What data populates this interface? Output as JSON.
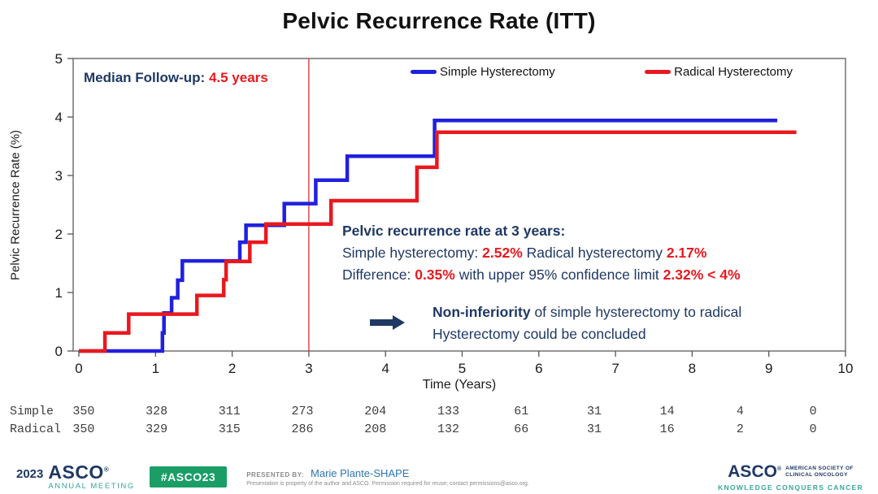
{
  "title": "Pelvic Recurrence Rate (ITT)",
  "chart_data": {
    "type": "line",
    "subtype": "kaplan-meier-step",
    "title": "Pelvic Recurrence Rate (ITT)",
    "xlabel": "Time (Years)",
    "ylabel": "Pelvic Recurrence Rate (%)",
    "xlim": [
      0,
      10
    ],
    "ylim": [
      0,
      5
    ],
    "x_ticks": [
      0,
      1,
      2,
      3,
      4,
      5,
      6,
      7,
      8,
      9,
      10
    ],
    "y_ticks": [
      0,
      1,
      2,
      3,
      4,
      5
    ],
    "grid": false,
    "legend_position": "top-center-inside",
    "marker_line_x": 3,
    "marker_line_color": "#E8191F",
    "series": [
      {
        "name": "Simple Hysterectomy",
        "color": "#2020DF",
        "end_x": 9.11,
        "steps": [
          [
            1.09,
            0.31
          ],
          [
            1.11,
            0.65
          ],
          [
            1.21,
            0.91
          ],
          [
            1.29,
            1.21
          ],
          [
            1.35,
            1.54
          ],
          [
            2.1,
            1.86
          ],
          [
            2.18,
            2.15
          ],
          [
            2.68,
            2.52
          ],
          [
            3.09,
            2.92
          ],
          [
            3.5,
            3.33
          ],
          [
            4.64,
            3.94
          ]
        ]
      },
      {
        "name": "Radical Hysterectomy",
        "color": "#E8191F",
        "end_x": 9.36,
        "steps": [
          [
            0.34,
            0.31
          ],
          [
            0.65,
            0.63
          ],
          [
            1.54,
            0.95
          ],
          [
            1.89,
            1.22
          ],
          [
            1.92,
            1.53
          ],
          [
            2.23,
            1.86
          ],
          [
            2.44,
            2.17
          ],
          [
            3.29,
            2.57
          ],
          [
            4.41,
            3.14
          ],
          [
            4.67,
            3.74
          ]
        ]
      }
    ],
    "risk_table": {
      "rows": [
        {
          "label": "Simple",
          "values": [
            350,
            328,
            311,
            273,
            204,
            133,
            61,
            31,
            14,
            4,
            0
          ]
        },
        {
          "label": "Radical",
          "values": [
            350,
            329,
            315,
            286,
            208,
            132,
            66,
            31,
            16,
            2,
            0
          ]
        }
      ]
    }
  },
  "annotations": {
    "median_label": "Median Follow-up:",
    "median_value": "4.5 years",
    "box_title": "Pelvic recurrence rate at 3 years:",
    "simple_label": "Simple hysterectomy:",
    "simple_value": "2.52%",
    "radical_label": "Radical hysterectomy",
    "radical_value": "2.17%",
    "diff_label": "Difference:",
    "diff_value": "0.35%",
    "diff_mid": "with upper 95% confidence limit",
    "diff_limit": "2.32% < 4%",
    "conclusion_bold": "Non-inferiority",
    "conclusion_rest": "of simple hysterectomy to radical",
    "conclusion_line2": "Hysterectomy could be concluded"
  },
  "footer": {
    "year": "2023",
    "asco": "ASCO",
    "annual_meeting": "ANNUAL MEETING",
    "hashtag": "#ASCO23",
    "presented_by": "PRESENTED BY:",
    "presenter": "Marie Plante-SHAPE",
    "permission": "Presentation is property of the author and ASCO. Permission required for reuse; contact permissions@asco.org.",
    "asco_right": "ASCO",
    "society_line1": "AMERICAN SOCIETY OF",
    "society_line2": "CLINICAL ONCOLOGY",
    "tagline": "KNOWLEDGE CONQUERS CANCER"
  },
  "colors": {
    "navy": "#1F3864",
    "red": "#E8191F",
    "blue": "#2020DF",
    "teal": "#35A79B",
    "green_badge": "#1A9E66",
    "axis_gray": "#7a7a7a"
  }
}
